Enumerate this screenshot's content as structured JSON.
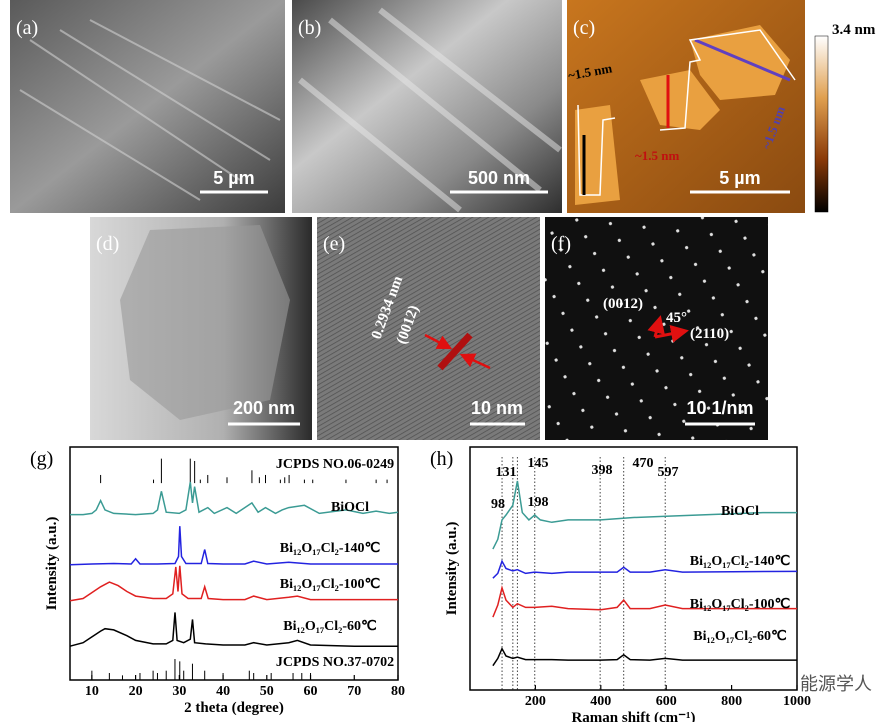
{
  "images": [
    {
      "label": "(a)",
      "scale_bar": "5 µm"
    },
    {
      "label": "(b)",
      "scale_bar": "500 nm"
    },
    {
      "label": "(c)",
      "scale_bar": "5 µm",
      "colorbar_max": "3.4 nm",
      "annotations": [
        "~1.5 nm",
        "~1.5 nm",
        "~1.5 nm"
      ]
    },
    {
      "label": "(d)",
      "scale_bar": "200 nm"
    },
    {
      "label": "(e)",
      "scale_bar": "10 nm",
      "annotations": [
        "0.2934 nm",
        "(0012)"
      ]
    },
    {
      "label": "(f)",
      "scale_bar": "10 1/nm",
      "annotations": [
        "(0012)",
        "45°",
        "(2110)"
      ]
    }
  ],
  "chart_data": [
    {
      "type": "line",
      "label": "(g)",
      "xlabel": "2 theta (degree)",
      "ylabel": "Intensity (a.u.)",
      "xlim": [
        5,
        80
      ],
      "xticks": [
        10,
        20,
        30,
        40,
        50,
        60,
        70,
        80
      ],
      "ylim": [
        0,
        100
      ],
      "series": [
        {
          "name": "BiOCl",
          "color": "#3b9b94",
          "x": [
            5,
            8,
            10,
            11,
            12,
            13,
            15,
            20,
            24,
            25,
            25.9,
            27,
            30,
            31.5,
            32.5,
            33,
            33.5,
            34.5,
            36.5,
            38,
            40.9,
            43,
            46.6,
            48,
            49.7,
            52,
            53.5,
            55,
            58.6,
            62,
            68.1,
            72,
            75,
            78,
            80
          ],
          "values": [
            71,
            71,
            71.5,
            73,
            77,
            73,
            71.5,
            71,
            71.5,
            73,
            81,
            72,
            71.5,
            73,
            85,
            76,
            83,
            72,
            74,
            71.5,
            74,
            71.5,
            76,
            72,
            74,
            71.5,
            73,
            74,
            75,
            71.5,
            73,
            71.5,
            72.5,
            71.5,
            72
          ]
        },
        {
          "name": "Bi₁₂O₁₇Cl₂-140℃",
          "color": "#2323e0",
          "x": [
            5,
            10,
            15,
            19,
            20,
            21,
            25,
            29,
            29.8,
            30.1,
            30.5,
            31.5,
            35,
            35.8,
            36.5,
            40,
            45,
            47,
            50,
            55,
            60,
            65,
            70,
            75,
            80
          ],
          "values": [
            49.5,
            49.8,
            50,
            49.8,
            52,
            49.8,
            49.8,
            50,
            53,
            66,
            53,
            50,
            50,
            56,
            50,
            49.8,
            49.8,
            51,
            49.8,
            50.5,
            49.8,
            49.8,
            49.8,
            49.8,
            49.8
          ]
        },
        {
          "name": "Bi₁₂O₁₇Cl₂-100℃",
          "color": "#e02020",
          "x": [
            5,
            8,
            10,
            12,
            14,
            16,
            18,
            20,
            24,
            27,
            28.5,
            29.2,
            29.7,
            30.1,
            30.6,
            32,
            35,
            35.8,
            36.6,
            40,
            45,
            47,
            50,
            55,
            57,
            60,
            70,
            80
          ],
          "values": [
            34,
            35,
            37.5,
            40,
            42,
            40.5,
            38,
            36,
            35,
            35,
            37,
            48.5,
            38,
            49,
            37,
            35,
            35,
            40,
            35,
            34.5,
            34.5,
            36,
            34.5,
            35.5,
            36,
            34.5,
            34.5,
            34.5
          ]
        },
        {
          "name": "Bi₁₂O₁₇Cl₂-60℃",
          "color": "#000000",
          "x": [
            5,
            8,
            10,
            12,
            13,
            15,
            18,
            20,
            24,
            27,
            28.5,
            29,
            29.5,
            31,
            32.5,
            33,
            33.5,
            36,
            40,
            45,
            47,
            50,
            55,
            57,
            60,
            70,
            80
          ],
          "values": [
            14.5,
            16,
            18.5,
            21,
            22,
            21.5,
            19,
            17,
            15.5,
            15.5,
            17,
            29,
            17,
            16,
            17.5,
            26,
            16,
            15.5,
            15,
            15,
            16,
            15,
            16,
            17,
            15,
            14.5,
            14.5
          ]
        }
      ],
      "references": [
        {
          "name": "JCPDS NO.06-0249",
          "color": "#000000",
          "base": 84.5,
          "x": [
            12,
            24.1,
            25.9,
            32.5,
            33.5,
            34.8,
            36.5,
            40.9,
            46.6,
            48.3,
            49.7,
            53.1,
            54.1,
            55.1,
            58.6,
            60.5,
            68.1,
            75,
            77.5
          ],
          "values": [
            88,
            86,
            95,
            95,
            94,
            86,
            88,
            87,
            90,
            87,
            88,
            86,
            87,
            88,
            86,
            86,
            86,
            86,
            86
          ]
        },
        {
          "name": "JCPDS NO.37-0702",
          "color": "#000000",
          "base": 0,
          "x": [
            10,
            14,
            17,
            21,
            24,
            25,
            27,
            29,
            30.1,
            31,
            33,
            35.8,
            40,
            46,
            47,
            51,
            56,
            58,
            60
          ],
          "values": [
            4,
            3,
            2,
            3,
            4,
            3,
            4,
            9,
            8,
            4,
            7,
            4,
            3,
            4,
            3,
            3,
            3,
            3,
            3
          ]
        }
      ]
    },
    {
      "type": "line",
      "label": "(h)",
      "xlabel": "Raman shift (cm⁻¹)",
      "ylabel": "Intensity (a.u.)",
      "xlim": [
        0,
        1000
      ],
      "xticks": [
        200,
        400,
        600,
        800,
        1000
      ],
      "ylim": [
        0,
        100
      ],
      "peak_lines": [
        98,
        131,
        145,
        198,
        398,
        470,
        597
      ],
      "series": [
        {
          "name": "BiOCl",
          "color": "#3b9b94",
          "x": [
            70,
            85,
            98,
            110,
            131,
            145,
            160,
            180,
            198,
            215,
            250,
            300,
            400,
            500,
            600,
            700,
            800,
            900,
            1000
          ],
          "values": [
            58,
            62,
            70,
            72,
            76,
            86,
            73,
            70,
            72,
            70,
            69,
            70,
            70,
            71,
            71.5,
            72,
            72.5,
            73,
            73
          ]
        },
        {
          "name": "Bi₁₂O₁₇Cl₂-140℃",
          "color": "#2323e0",
          "x": [
            70,
            85,
            98,
            110,
            131,
            145,
            170,
            198,
            250,
            300,
            400,
            450,
            470,
            490,
            550,
            597,
            650,
            800,
            1000
          ],
          "values": [
            46,
            48,
            53,
            50,
            49,
            49.5,
            48,
            48.5,
            48,
            48.5,
            48.5,
            48.5,
            50.5,
            48.5,
            48.5,
            49.5,
            48.5,
            48.7,
            48.8
          ]
        },
        {
          "name": "Bi₁₂O₁₇Cl₂-100℃",
          "color": "#e02020",
          "x": [
            70,
            85,
            98,
            110,
            131,
            145,
            170,
            198,
            250,
            300,
            400,
            450,
            470,
            490,
            550,
            597,
            650,
            800,
            1000
          ],
          "values": [
            30,
            35,
            42,
            37,
            34,
            35.5,
            34,
            34,
            34.5,
            33.5,
            33,
            34,
            37,
            33.5,
            33.5,
            35,
            33.5,
            33.5,
            33.5
          ]
        },
        {
          "name": "Bi₁₂O₁₇Cl₂-60℃",
          "color": "#000000",
          "x": [
            70,
            85,
            98,
            110,
            131,
            145,
            170,
            198,
            250,
            300,
            400,
            450,
            470,
            490,
            550,
            597,
            650,
            800,
            1000
          ],
          "values": [
            10,
            13,
            17,
            14,
            13,
            13.5,
            12.5,
            12.5,
            12.5,
            12.3,
            12.3,
            12.5,
            14.5,
            12.5,
            12.3,
            13,
            12.3,
            12.3,
            12.3
          ]
        }
      ]
    }
  ],
  "watermark": "能源学人"
}
